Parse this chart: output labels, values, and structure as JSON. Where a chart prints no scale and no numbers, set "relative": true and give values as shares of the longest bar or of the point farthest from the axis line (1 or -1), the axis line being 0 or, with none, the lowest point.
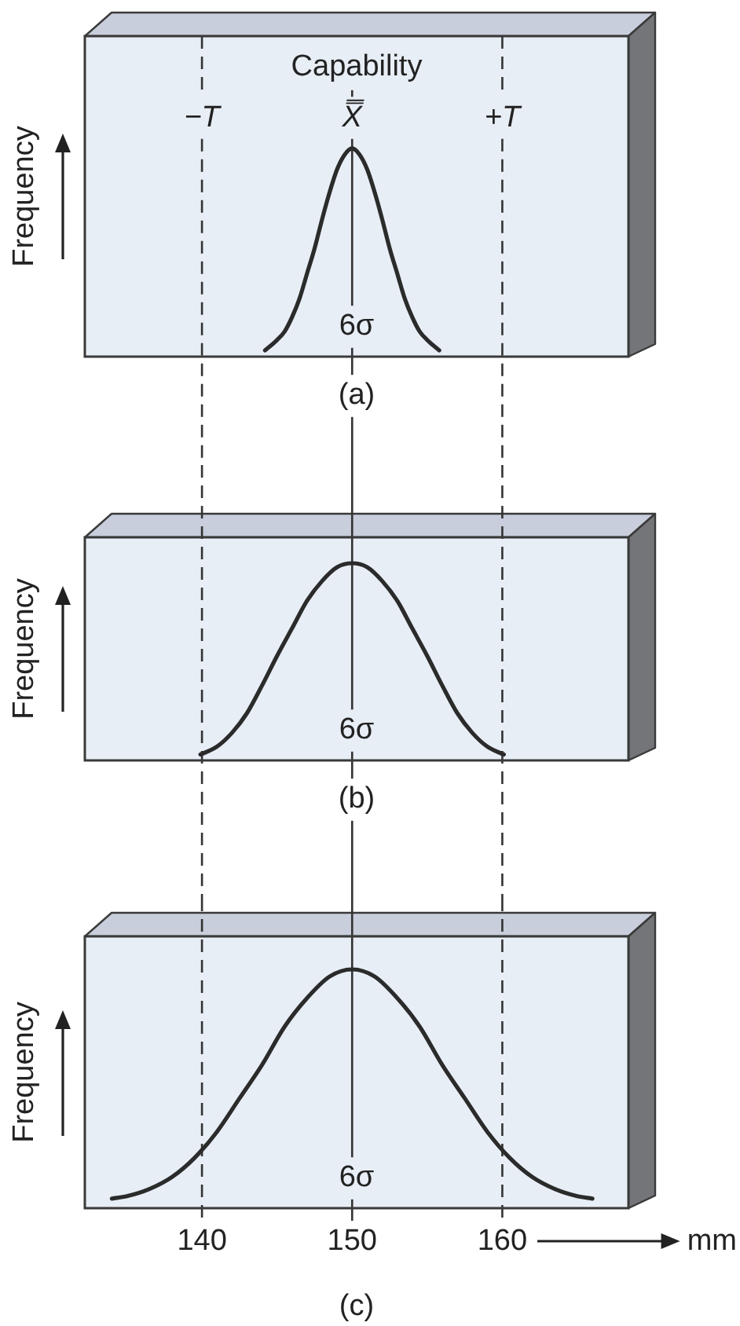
{
  "chart_data": [
    {
      "type": "line",
      "title": "Capability",
      "ylabel": "Frequency",
      "relative": true,
      "xlim": [
        132.2,
        168.4
      ],
      "tick_labels": false,
      "color": "#2b2b2b",
      "x": [
        144.2,
        145,
        145.5,
        146,
        146.5,
        147,
        147.5,
        148,
        148.5,
        149,
        149.5,
        150,
        150.5,
        151,
        151.5,
        152,
        152.5,
        153,
        153.5,
        154,
        154.5,
        155,
        155.8
      ],
      "values": [
        0.03,
        0.08,
        0.12,
        0.19,
        0.28,
        0.4,
        0.52,
        0.66,
        0.79,
        0.9,
        0.97,
        1,
        0.97,
        0.9,
        0.79,
        0.66,
        0.52,
        0.4,
        0.28,
        0.19,
        0.12,
        0.08,
        0.03
      ],
      "ref_lines": [
        {
          "axis": "x",
          "value": 140,
          "label": "−T",
          "line_style": "dashed",
          "color": "#333333"
        },
        {
          "axis": "x",
          "value": 150,
          "label": "X̿",
          "line_style": "solid",
          "color": "#333333"
        },
        {
          "axis": "x",
          "value": 160,
          "label": "+T",
          "line_style": "dashed",
          "color": "#333333"
        }
      ],
      "annotations": [
        "6σ",
        "(a)"
      ]
    },
    {
      "type": "line",
      "ylabel": "Frequency",
      "relative": true,
      "xlim": [
        132.2,
        168.4
      ],
      "tick_labels": false,
      "color": "#2b2b2b",
      "x": [
        139.9,
        141,
        142,
        143,
        144,
        145,
        146,
        147,
        148,
        149,
        150,
        151,
        152,
        153,
        154,
        155,
        156,
        157,
        158,
        159,
        160.1
      ],
      "values": [
        0.03,
        0.07,
        0.14,
        0.24,
        0.38,
        0.53,
        0.67,
        0.81,
        0.91,
        0.98,
        1,
        0.98,
        0.91,
        0.81,
        0.67,
        0.53,
        0.38,
        0.24,
        0.14,
        0.07,
        0.03
      ],
      "ref_lines": [
        {
          "axis": "x",
          "value": 140,
          "line_style": "dashed",
          "color": "#333333"
        },
        {
          "axis": "x",
          "value": 150,
          "line_style": "solid",
          "color": "#333333"
        },
        {
          "axis": "x",
          "value": 160,
          "line_style": "dashed",
          "color": "#333333"
        }
      ],
      "annotations": [
        "6σ",
        "(b)"
      ]
    },
    {
      "type": "line",
      "ylabel": "Frequency",
      "xlabel": "mm",
      "relative": true,
      "xlim": [
        132.2,
        168.4
      ],
      "xticks": [
        140,
        150,
        160
      ],
      "tick_labels": "x",
      "color": "#2b2b2b",
      "x": [
        134,
        135,
        136.5,
        138,
        139.5,
        141,
        142.5,
        144,
        145.5,
        147,
        148.5,
        150,
        151.5,
        153,
        154.5,
        156,
        157.5,
        159,
        160.5,
        162,
        163.5,
        165,
        166
      ],
      "values": [
        0.04,
        0.05,
        0.08,
        0.13,
        0.21,
        0.32,
        0.46,
        0.6,
        0.76,
        0.88,
        0.97,
        1,
        0.97,
        0.88,
        0.76,
        0.6,
        0.46,
        0.32,
        0.21,
        0.13,
        0.08,
        0.05,
        0.04
      ],
      "ref_lines": [
        {
          "axis": "x",
          "value": 140,
          "line_style": "dashed",
          "color": "#333333"
        },
        {
          "axis": "x",
          "value": 150,
          "line_style": "solid",
          "color": "#333333"
        },
        {
          "axis": "x",
          "value": 160,
          "line_style": "dashed",
          "color": "#333333"
        }
      ],
      "annotations": [
        "6σ",
        "(c)"
      ]
    }
  ]
}
